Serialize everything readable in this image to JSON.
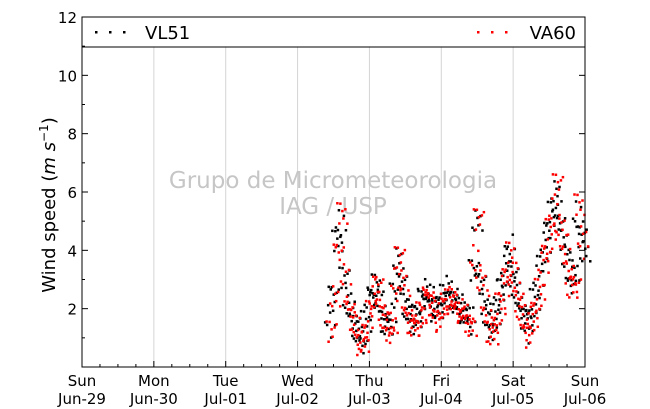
{
  "chart_data": {
    "type": "scatter",
    "ylabel_main": "Wind speed (",
    "ylabel_unit": "m s",
    "ylabel_exp": "−1",
    "ylabel_close": ")",
    "xlim": [
      0,
      7
    ],
    "ylim": [
      0,
      12
    ],
    "y_ticks": [
      2,
      4,
      6,
      8,
      10,
      12
    ],
    "x_ticks": [
      {
        "x": 0,
        "day": "Sun",
        "date": "Jun-29"
      },
      {
        "x": 1,
        "day": "Mon",
        "date": "Jun-30"
      },
      {
        "x": 2,
        "day": "Tue",
        "date": "Jul-01"
      },
      {
        "x": 3,
        "day": "Wed",
        "date": "Jul-02"
      },
      {
        "x": 4,
        "day": "Thu",
        "date": "Jul-03"
      },
      {
        "x": 5,
        "day": "Fri",
        "date": "Jul-04"
      },
      {
        "x": 6,
        "day": "Sat",
        "date": "Jul-05"
      },
      {
        "x": 7,
        "day": "Sun",
        "date": "Jul-06"
      }
    ],
    "grid": "vertical",
    "legend_placement": "top",
    "watermark": [
      "Grupo de Micrometeorologia",
      "IAG / USP"
    ],
    "series": [
      {
        "name": "VL51",
        "color": "#000000",
        "x": [
          3.45,
          3.5,
          3.55,
          3.6,
          3.65,
          3.7,
          3.75,
          3.8,
          3.85,
          3.9,
          3.95,
          4.0,
          4.05,
          4.1,
          4.15,
          4.2,
          4.25,
          4.3,
          4.35,
          4.4,
          4.45,
          4.5,
          4.55,
          4.6,
          4.65,
          4.7,
          4.75,
          4.8,
          4.85,
          4.9,
          4.95,
          5.0,
          5.05,
          5.1,
          5.15,
          5.2,
          5.25,
          5.3,
          5.35,
          5.4,
          5.45,
          5.5,
          5.55,
          5.6,
          5.65,
          5.7,
          5.75,
          5.8,
          5.85,
          5.9,
          5.95,
          6.0,
          6.05,
          6.1,
          6.15,
          6.2,
          6.25,
          6.3,
          6.35,
          6.4,
          6.45,
          6.5,
          6.55,
          6.6,
          6.65,
          6.7,
          6.75,
          6.8,
          6.85,
          6.9,
          6.95,
          7.0
        ],
        "y": [
          1.6,
          2.6,
          4.3,
          4.8,
          3.2,
          2.3,
          1.8,
          1.5,
          1.1,
          0.9,
          1.6,
          2.2,
          2.5,
          2.8,
          2.2,
          1.7,
          1.4,
          1.6,
          2.6,
          3.6,
          3.1,
          2.2,
          1.8,
          1.5,
          1.7,
          2.1,
          2.4,
          2.6,
          2.3,
          2.0,
          1.9,
          2.3,
          2.5,
          2.6,
          2.4,
          2.2,
          2.1,
          2.0,
          1.8,
          1.6,
          3.4,
          4.9,
          3.1,
          2.2,
          1.6,
          1.3,
          1.8,
          2.4,
          2.8,
          3.4,
          4.1,
          3.2,
          2.6,
          2.1,
          1.7,
          1.4,
          1.8,
          2.3,
          2.9,
          3.6,
          4.2,
          4.9,
          5.4,
          5.9,
          5.1,
          4.4,
          3.6,
          2.9,
          3.3,
          5.1,
          4.6,
          3.9
        ]
      },
      {
        "name": "VA60",
        "color": "#ff0000",
        "x": [
          3.47,
          3.52,
          3.57,
          3.62,
          3.67,
          3.72,
          3.77,
          3.82,
          3.87,
          3.92,
          3.97,
          4.02,
          4.07,
          4.12,
          4.17,
          4.22,
          4.27,
          4.32,
          4.37,
          4.42,
          4.47,
          4.52,
          4.57,
          4.62,
          4.67,
          4.72,
          4.77,
          4.82,
          4.87,
          4.92,
          4.97,
          5.02,
          5.07,
          5.12,
          5.17,
          5.22,
          5.27,
          5.32,
          5.37,
          5.42,
          5.47,
          5.52,
          5.57,
          5.62,
          5.67,
          5.72,
          5.77,
          5.82,
          5.87,
          5.92,
          5.97,
          6.02,
          6.07,
          6.12,
          6.17,
          6.22,
          6.27,
          6.32,
          6.37,
          6.42,
          6.47,
          6.52,
          6.57,
          6.62,
          6.67,
          6.72,
          6.77,
          6.82,
          6.87,
          6.92,
          6.97
        ],
        "y": [
          1.3,
          2.3,
          4.1,
          5.3,
          3.0,
          2.1,
          1.6,
          1.3,
          0.9,
          0.8,
          1.4,
          2.0,
          2.3,
          3.0,
          2.0,
          1.5,
          1.2,
          1.5,
          2.8,
          3.9,
          2.9,
          2.0,
          1.6,
          1.3,
          1.5,
          1.9,
          2.2,
          2.5,
          2.1,
          1.8,
          1.7,
          2.1,
          2.3,
          2.4,
          2.2,
          2.0,
          1.9,
          1.8,
          1.6,
          1.4,
          3.6,
          5.2,
          2.9,
          2.0,
          1.3,
          1.0,
          1.6,
          2.2,
          2.6,
          3.2,
          3.9,
          3.0,
          2.4,
          1.9,
          1.4,
          1.1,
          1.6,
          2.1,
          2.7,
          3.4,
          4.0,
          4.7,
          5.2,
          6.4,
          4.8,
          4.1,
          3.3,
          2.6,
          3.0,
          5.6,
          4.3
        ]
      }
    ]
  }
}
